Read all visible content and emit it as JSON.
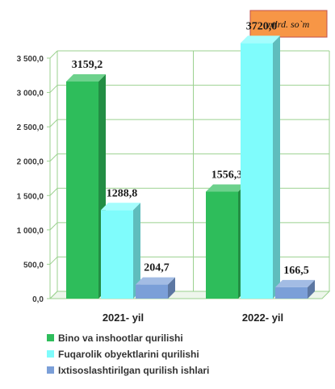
{
  "unit_label": "mlrd. so`m",
  "chart_data": {
    "type": "bar",
    "categories": [
      "2021- yil",
      "2022- yil"
    ],
    "series": [
      {
        "name": "Bino va inshootlar qurilishi",
        "values": [
          3159.2,
          1556.3
        ],
        "labels": [
          "3159,2",
          "1556,3"
        ],
        "color": "#2ebd5b"
      },
      {
        "name": "Fuqarolik obyektlarini qurilishi",
        "values": [
          1288.8,
          3720.0
        ],
        "labels": [
          "1288,8",
          "3720,0"
        ],
        "color": "#7ffcfc"
      },
      {
        "name": "Ixtisoslashtirilgan qurilish ishlari",
        "values": [
          204.7,
          166.5
        ],
        "labels": [
          "204,7",
          "166,5"
        ],
        "color": "#7b9fd8"
      }
    ],
    "yticks": [
      "0,0",
      "500,0",
      "1 000,0",
      "1 500,0",
      "2 000,0",
      "2 500,0",
      "3 000,0",
      "3 500,0"
    ],
    "ylim": [
      0,
      3500
    ],
    "grid": true,
    "legend": "bottom"
  }
}
